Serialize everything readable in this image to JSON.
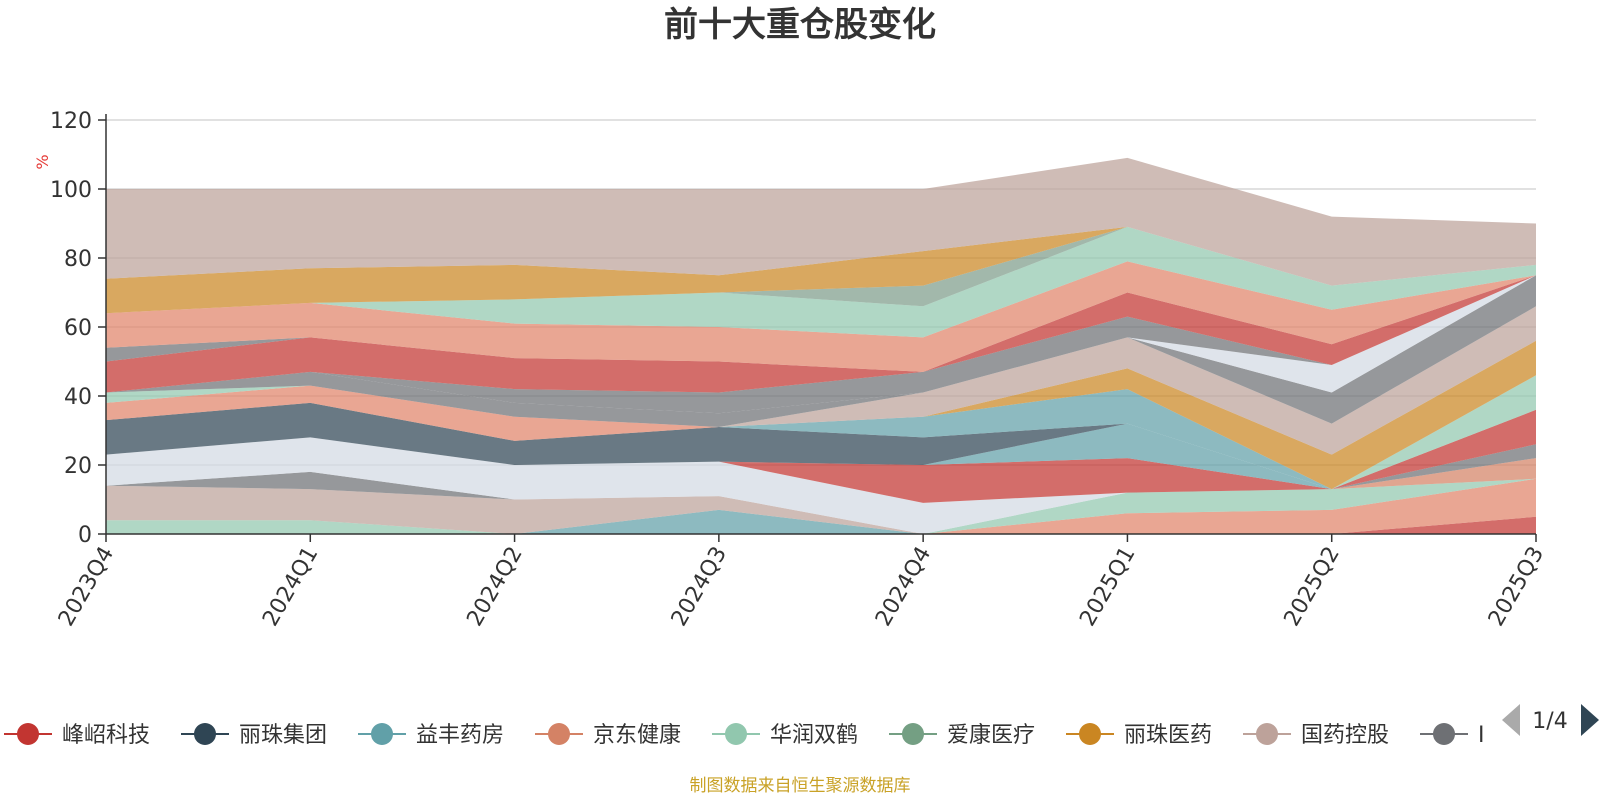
{
  "chart_data": {
    "type": "area",
    "stacked": true,
    "title": "前十大重仓股变化",
    "ylabel": "%",
    "xlabel": "",
    "ylim": [
      0,
      120
    ],
    "yticks": [
      0,
      20,
      40,
      60,
      80,
      100,
      120
    ],
    "grid": true,
    "legend_placement": "bottom",
    "categories": [
      "2023Q4",
      "2024Q1",
      "2024Q2",
      "2024Q3",
      "2024Q4",
      "2025Q1",
      "2025Q2",
      "2025Q3"
    ],
    "series": [
      {
        "name": "峰岹科技",
        "color": "#c23531",
        "values": [
          0,
          0,
          0,
          0,
          0,
          0,
          0,
          5
        ]
      },
      {
        "name": "",
        "color": "#e0836a",
        "values": [
          0,
          0,
          0,
          0,
          0,
          6,
          7,
          11
        ]
      },
      {
        "name": "",
        "color": "#91c7ae",
        "values": [
          4,
          4,
          0,
          0,
          0,
          6,
          6,
          0
        ]
      },
      {
        "name": "",
        "color": "#61a0a8",
        "values": [
          0,
          0,
          0,
          7,
          0,
          0,
          0,
          0
        ]
      },
      {
        "name": "",
        "color": "#d48265",
        "values": [
          0,
          0,
          0,
          0,
          0,
          0,
          0,
          6
        ]
      },
      {
        "name": "",
        "color": "#c23531",
        "values": [
          0,
          0,
          0,
          0,
          0,
          0,
          0,
          0
        ]
      },
      {
        "name": "",
        "color": "#bda29a",
        "values": [
          10,
          9,
          10,
          4,
          0,
          0,
          0,
          0
        ]
      },
      {
        "name": "",
        "color": "#c23531",
        "values": [
          0,
          0,
          0,
          0,
          0,
          0,
          0,
          0
        ]
      },
      {
        "name": "",
        "color": "#6e7074",
        "values": [
          0,
          5,
          0,
          0,
          0,
          0,
          0,
          4
        ]
      },
      {
        "name": "",
        "color": "#d3d9e3",
        "values": [
          9,
          10,
          10,
          10,
          9,
          0,
          0,
          0
        ]
      },
      {
        "name": "",
        "color": "#c23531",
        "values": [
          0,
          0,
          0,
          0,
          11,
          10,
          0,
          10
        ]
      },
      {
        "name": "",
        "color": "#61a0a8",
        "values": [
          0,
          0,
          0,
          0,
          0,
          10,
          0,
          0
        ]
      },
      {
        "name": "",
        "color": "#91c7ae",
        "values": [
          0,
          0,
          0,
          0,
          0,
          0,
          0,
          10
        ]
      },
      {
        "name": "丽珠集团",
        "color": "#2f4554",
        "values": [
          10,
          10,
          7,
          10,
          8,
          0,
          0,
          0
        ]
      },
      {
        "name": "",
        "color": "#61a0a8",
        "values": [
          0,
          0,
          0,
          0,
          6,
          10,
          0,
          0
        ]
      },
      {
        "name": "",
        "color": "#ca8622",
        "values": [
          0,
          0,
          0,
          0,
          0,
          6,
          10,
          10
        ]
      },
      {
        "name": "",
        "color": "#bda29a",
        "values": [
          0,
          0,
          0,
          0,
          7,
          9,
          9,
          10
        ]
      },
      {
        "name": "",
        "color": "#e0836a",
        "values": [
          5,
          5,
          7,
          0,
          0,
          0,
          0,
          0
        ]
      },
      {
        "name": "",
        "color": "#91c7ae",
        "values": [
          3,
          0,
          0,
          0,
          0,
          0,
          0,
          0
        ]
      },
      {
        "name": "",
        "color": "#6e7074",
        "values": [
          0,
          4,
          4,
          4,
          0,
          0,
          9,
          9
        ]
      },
      {
        "name": "",
        "color": "#d3d9e3",
        "values": [
          0,
          0,
          0,
          0,
          0,
          0,
          8,
          0
        ]
      },
      {
        "name": "",
        "color": "#bda29a",
        "values": [
          0,
          0,
          0,
          0,
          0,
          0,
          0,
          0
        ]
      },
      {
        "name": "",
        "color": "#6e7074",
        "values": [
          0,
          0,
          4,
          6,
          6,
          6,
          0,
          0
        ]
      },
      {
        "name": "",
        "color": "#c23531",
        "values": [
          9,
          10,
          9,
          9,
          0,
          7,
          6,
          0
        ]
      },
      {
        "name": "",
        "color": "#6e7074",
        "values": [
          4,
          0,
          0,
          0,
          0,
          0,
          0,
          0
        ]
      },
      {
        "name": "",
        "color": "#e0836a",
        "values": [
          10,
          10,
          10,
          10,
          10,
          9,
          10,
          0
        ]
      },
      {
        "name": "",
        "color": "#91c7ae",
        "values": [
          0,
          0,
          7,
          10,
          9,
          10,
          7,
          3
        ]
      },
      {
        "name": "",
        "color": "#7e9d8a",
        "values": [
          0,
          0,
          0,
          0,
          6,
          0,
          0,
          0
        ]
      },
      {
        "name": "丽珠医药",
        "color": "#ca8622",
        "values": [
          10,
          10,
          10,
          5,
          10,
          0,
          0,
          0
        ]
      },
      {
        "name": "国药控股",
        "color": "#bda29a",
        "values": [
          26,
          23,
          22,
          25,
          18,
          20,
          20,
          12
        ]
      }
    ],
    "legend_items": [
      {
        "name": "峰岹科技",
        "color": "#c23531"
      },
      {
        "name": "丽珠集团",
        "color": "#2f4554"
      },
      {
        "name": "益丰药房",
        "color": "#61a0a8"
      },
      {
        "name": "京东健康",
        "color": "#d48265"
      },
      {
        "name": "华润双鹤",
        "color": "#91c7ae"
      },
      {
        "name": "爱康医疗",
        "color": "#749f83"
      },
      {
        "name": "丽珠医药",
        "color": "#ca8622"
      },
      {
        "name": "国药控股",
        "color": "#bda29a"
      },
      {
        "name": "I",
        "color": "#6e7074"
      }
    ],
    "legend_page": "1/4",
    "source": "制图数据来自恒生聚源数据库"
  }
}
